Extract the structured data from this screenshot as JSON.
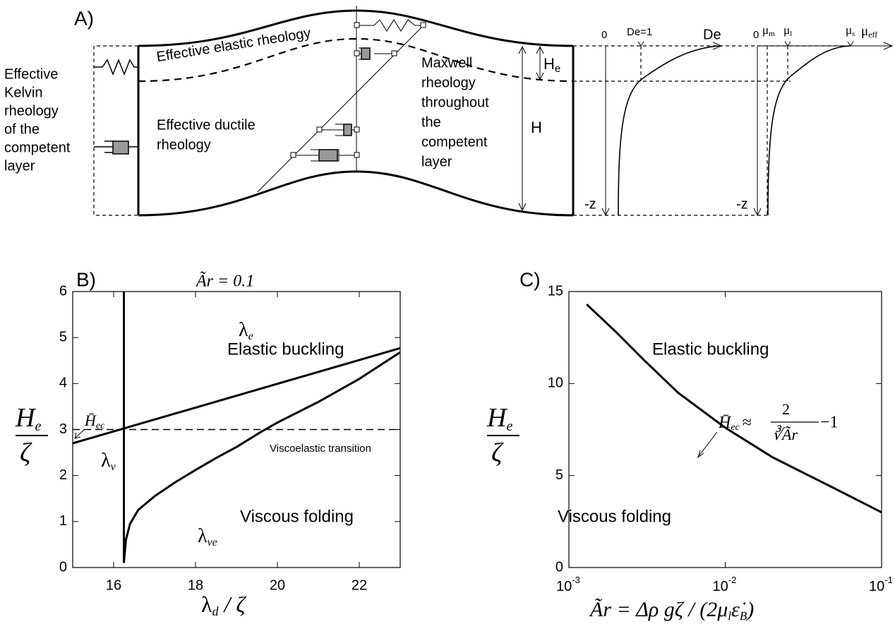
{
  "panel_a": {
    "label": "A)",
    "left_text": [
      "Effective",
      "Kelvin",
      "rheology",
      "of the",
      "competent",
      "layer"
    ],
    "elastic_text": "Effective elastic rheology",
    "ductile_text": [
      "Effective ductile",
      "rheology"
    ],
    "maxwell_text": [
      "Maxwell",
      "rheology",
      "throughout",
      "the",
      "competent",
      "layer"
    ],
    "he_label": {
      "main": "H",
      "sub": "e"
    },
    "h_label": "H",
    "de_plot": {
      "zero": "0",
      "de1": "De=1",
      "axis": "De",
      "depth": "-z"
    },
    "mu_plot": {
      "zero": "0",
      "m": {
        "main": "μ",
        "sub": "m"
      },
      "l": {
        "main": "μ",
        "sub": "l"
      },
      "s": {
        "main": "μ",
        "sub": "s"
      },
      "eff": {
        "main": "μ",
        "sub": "eff"
      },
      "depth": "-z"
    }
  },
  "chart_data": [
    {
      "type": "line",
      "panel_label": "B)",
      "title": "Ãr = 0.1",
      "xlabel": {
        "main": "λ",
        "sub": "d",
        "rest": " / ζ"
      },
      "ylabel": {
        "numerator": "H",
        "numerator_sub": "e",
        "denominator": "ζ"
      },
      "xlim": [
        15,
        23
      ],
      "ylim": [
        0,
        6
      ],
      "xticks": [
        16,
        18,
        20,
        22
      ],
      "yticks": [
        0,
        1,
        2,
        3,
        4,
        5,
        6
      ],
      "series": [
        {
          "label": {
            "main": "λ",
            "sub": "e"
          },
          "color": "#000000",
          "dash": false,
          "x": [
            15,
            23
          ],
          "values": [
            2.7,
            4.77
          ]
        },
        {
          "label": {
            "main": "λ",
            "sub": "v"
          },
          "color": "#000000",
          "dash": false,
          "x": [
            16.25,
            16.25
          ],
          "values": [
            0.1,
            6
          ]
        },
        {
          "label": {
            "main": "λ",
            "sub": "ve"
          },
          "color": "#000000",
          "dash": false,
          "x": [
            16.25,
            16.3,
            16.4,
            16.6,
            17,
            17.5,
            18,
            18.5,
            19,
            19.6,
            20,
            21,
            22,
            23
          ],
          "values": [
            0.1,
            0.6,
            0.95,
            1.25,
            1.55,
            1.85,
            2.12,
            2.38,
            2.62,
            2.95,
            3.15,
            3.6,
            4.1,
            4.68
          ]
        },
        {
          "label": "Viscoelastic transition",
          "color": "#000000",
          "dash": true,
          "x": [
            15,
            23
          ],
          "values": [
            3,
            3
          ]
        }
      ],
      "annotations": {
        "upper": "Elastic buckling",
        "lower": "Viscous folding",
        "hec": {
          "main": "H̄",
          "sub": "ec"
        }
      }
    },
    {
      "type": "line",
      "panel_label": "C)",
      "log_x": true,
      "xlabel": {
        "main": "Ãr = Δρ gζ / (2μ",
        "sub": "l",
        "mid": "ε̇",
        "sub2": "B",
        "end": ")"
      },
      "ylabel": {
        "numerator": "H",
        "numerator_sub": "e",
        "denominator": "ζ"
      },
      "xlim": [
        0.001,
        0.1
      ],
      "ylim": [
        0,
        15
      ],
      "xticks": [
        {
          "value": 0.001,
          "label": {
            "base": "10",
            "exponent": "-3"
          }
        },
        {
          "value": 0.01,
          "label": {
            "base": "10",
            "exponent": "-2"
          }
        },
        {
          "value": 0.1,
          "label": {
            "base": "10",
            "exponent": "-1"
          }
        }
      ],
      "yticks": [
        0,
        5,
        10,
        15
      ],
      "series": [
        {
          "color": "#000000",
          "dash": false,
          "x": [
            0.0013,
            0.002,
            0.003,
            0.005,
            0.01,
            0.02,
            0.05,
            0.1
          ],
          "values": [
            14.3,
            12.8,
            11.3,
            9.5,
            7.6,
            6.0,
            4.3,
            3.0
          ]
        }
      ],
      "annotations": {
        "upper": "Elastic buckling",
        "lower": "Viscous folding",
        "formula": {
          "h": "H̄",
          "sub": "ec",
          "approx": "≈",
          "num": "2",
          "den": "∛Ãr",
          "tail": "−1"
        }
      }
    }
  ]
}
